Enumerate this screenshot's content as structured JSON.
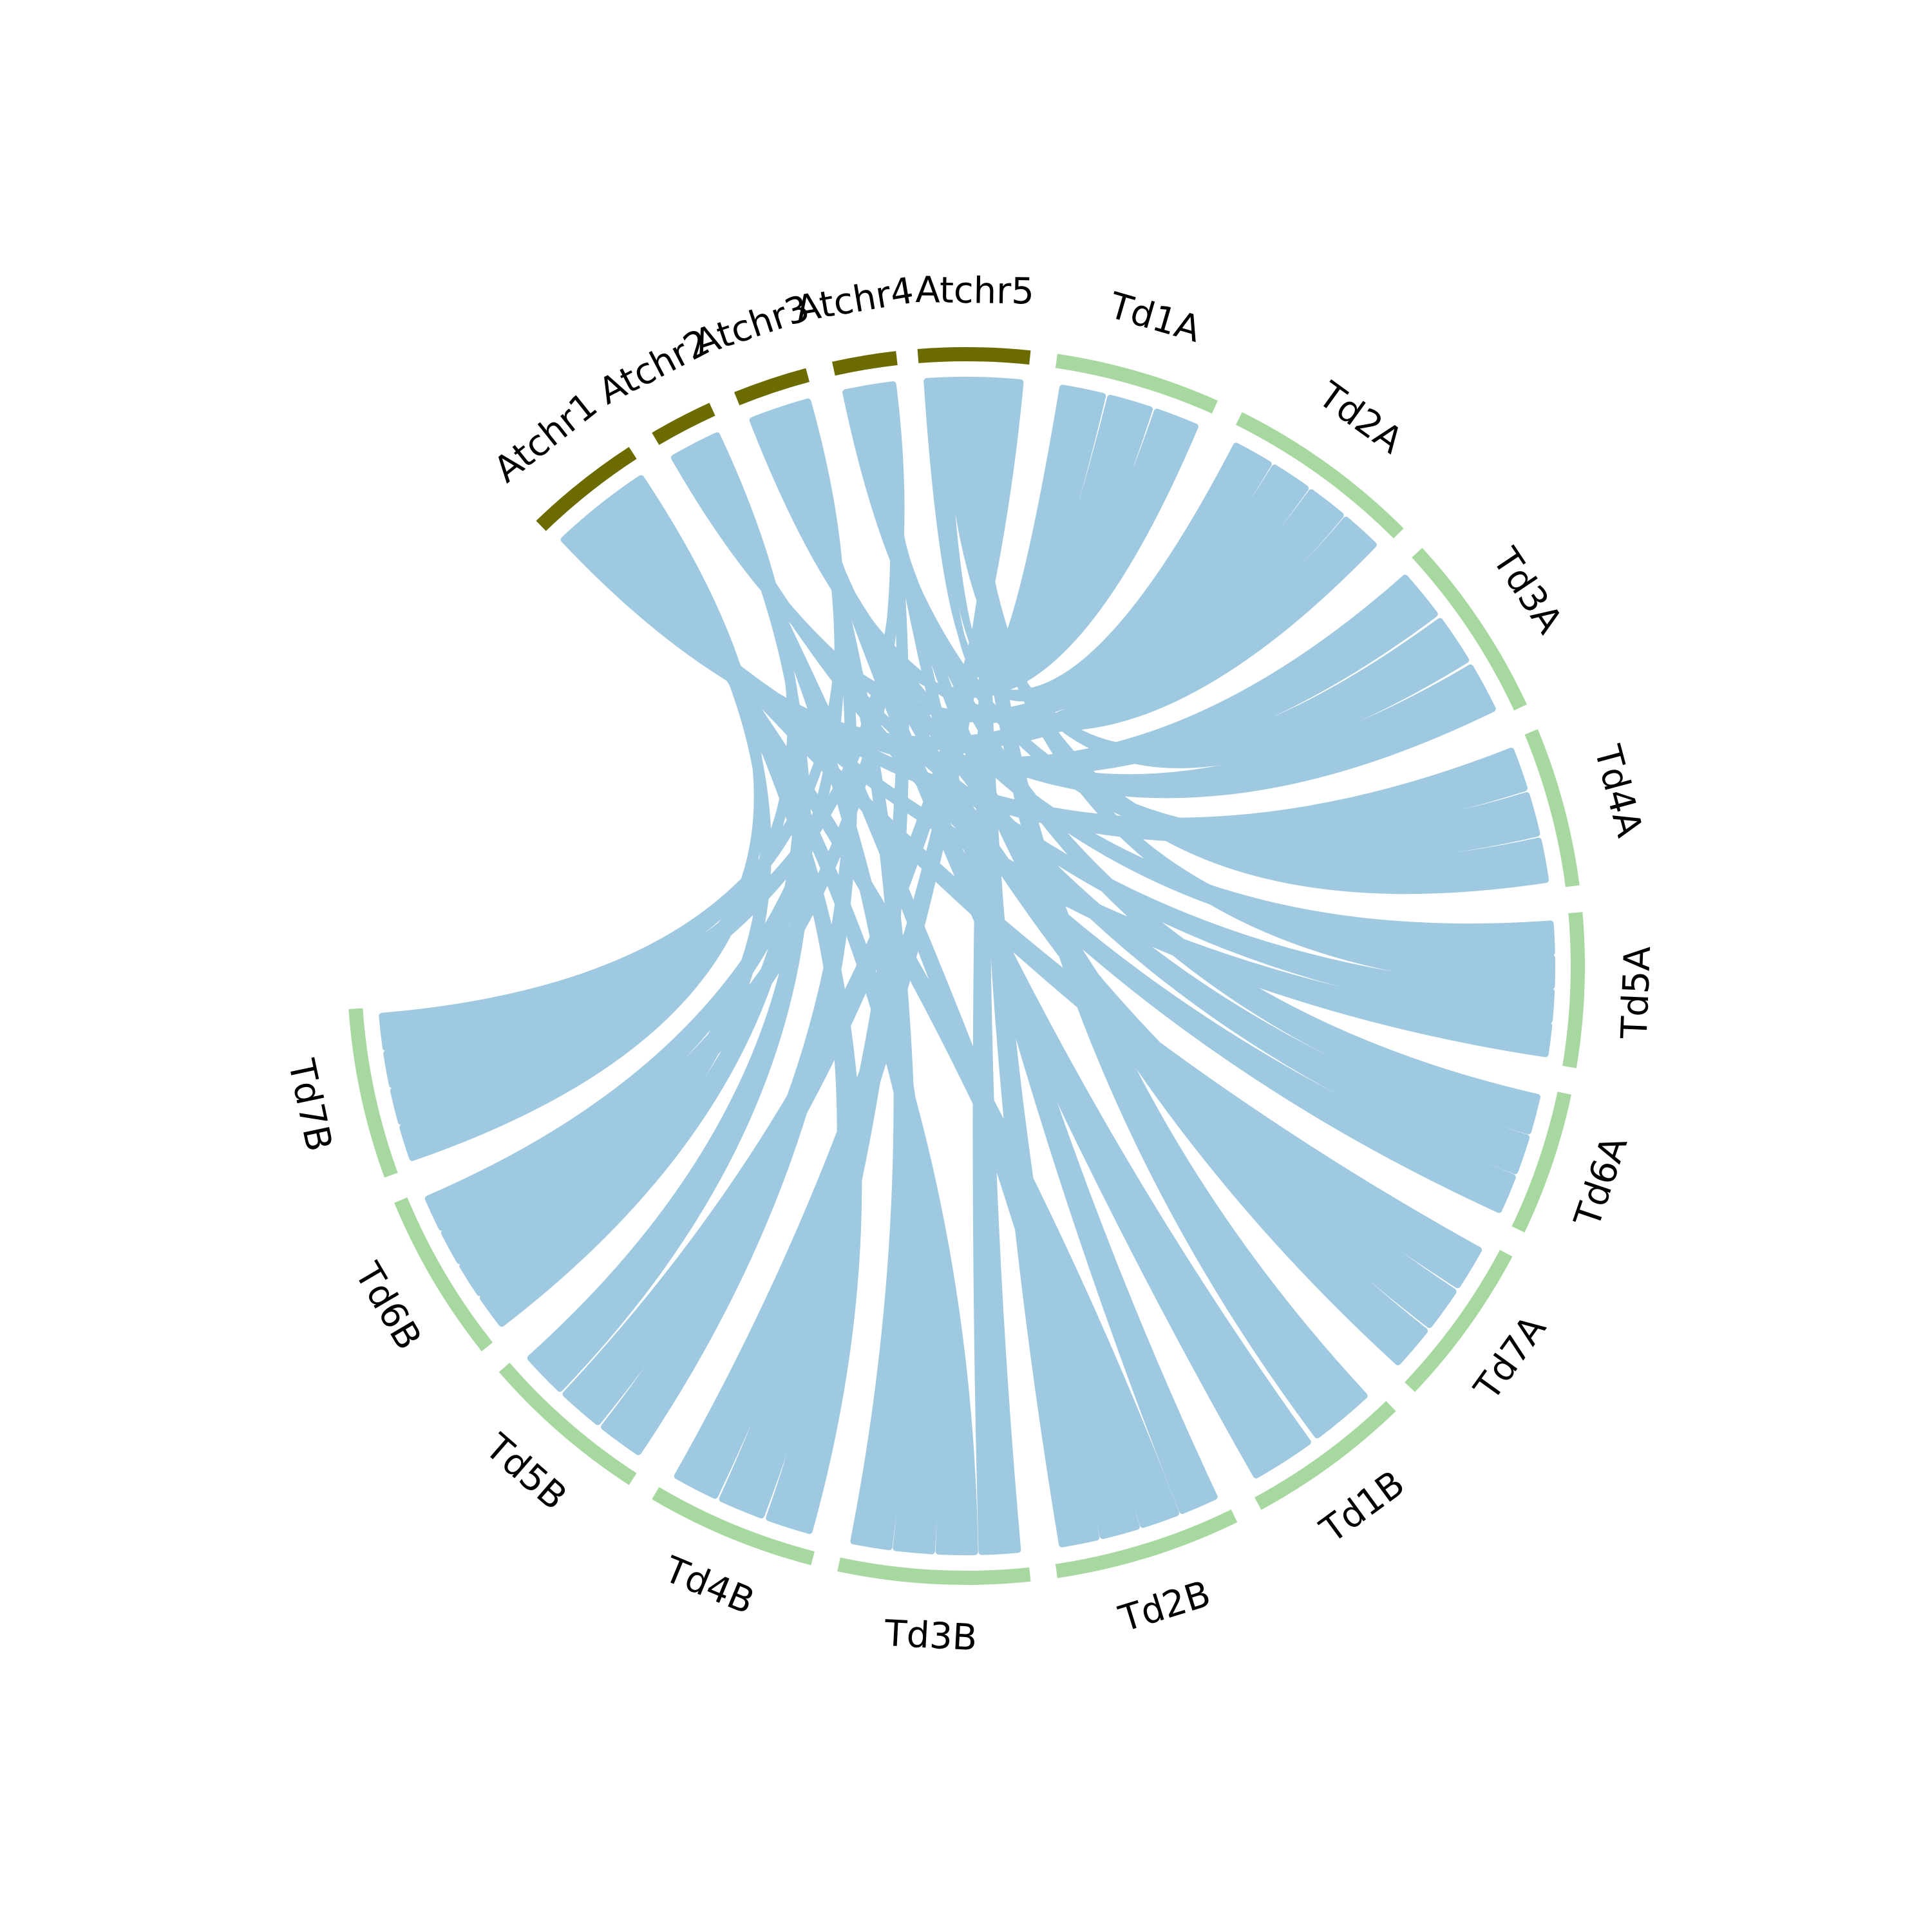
{
  "colors": {
    "arabidopsis": "#6b6b00",
    "durum": "#a6d89f",
    "link": "#9fc9e0",
    "background": "#ffffff"
  },
  "segments": [
    {
      "id": "Atchr1",
      "label": "Atchr1",
      "group": "arabidopsis"
    },
    {
      "id": "Atchr2",
      "label": "Atchr2",
      "group": "arabidopsis"
    },
    {
      "id": "Atchr3",
      "label": "Atchr3",
      "group": "arabidopsis"
    },
    {
      "id": "Atchr4",
      "label": "Atchr4",
      "group": "arabidopsis"
    },
    {
      "id": "Atchr5",
      "label": "Atchr5",
      "group": "arabidopsis"
    },
    {
      "id": "Td1A",
      "label": "Td1A",
      "group": "durum"
    },
    {
      "id": "Td2A",
      "label": "Td2A",
      "group": "durum"
    },
    {
      "id": "Td3A",
      "label": "Td3A",
      "group": "durum"
    },
    {
      "id": "Td4A",
      "label": "Td4A",
      "group": "durum"
    },
    {
      "id": "Td5A",
      "label": "Td5A",
      "group": "durum"
    },
    {
      "id": "Td6A",
      "label": "Td6A",
      "group": "durum"
    },
    {
      "id": "Td7A",
      "label": "Td7A",
      "group": "durum"
    },
    {
      "id": "Td1B",
      "label": "Td1B",
      "group": "durum"
    },
    {
      "id": "Td2B",
      "label": "Td2B",
      "group": "durum"
    },
    {
      "id": "Td3B",
      "label": "Td3B",
      "group": "durum"
    },
    {
      "id": "Td4B",
      "label": "Td4B",
      "group": "durum"
    },
    {
      "id": "Td5B",
      "label": "Td5B",
      "group": "durum"
    },
    {
      "id": "Td6B",
      "label": "Td6B",
      "group": "durum"
    },
    {
      "id": "Td7B",
      "label": "Td7B",
      "group": "durum"
    }
  ],
  "links": [
    {
      "from": "Td1A",
      "to": "Atchr5"
    },
    {
      "from": "Td1A",
      "to": "Atchr5"
    },
    {
      "from": "Td1A",
      "to": "Atchr3"
    },
    {
      "from": "Td2A",
      "to": "Atchr4"
    },
    {
      "from": "Td2A",
      "to": "Atchr2"
    },
    {
      "from": "Td2A",
      "to": "Atchr1"
    },
    {
      "from": "Td2A",
      "to": "Atchr3"
    },
    {
      "from": "Td3A",
      "to": "Atchr1"
    },
    {
      "from": "Td3A",
      "to": "Atchr5"
    },
    {
      "from": "Td3A",
      "to": "Atchr2"
    },
    {
      "from": "Td4A",
      "to": "Atchr1"
    },
    {
      "from": "Td4A",
      "to": "Atchr4"
    },
    {
      "from": "Td4A",
      "to": "Atchr5"
    },
    {
      "from": "Td5A",
      "to": "Atchr3"
    },
    {
      "from": "Td5A",
      "to": "Atchr5"
    },
    {
      "from": "Td5A",
      "to": "Atchr2"
    },
    {
      "from": "Td5A",
      "to": "Atchr1"
    },
    {
      "from": "Td6A",
      "to": "Atchr4"
    },
    {
      "from": "Td6A",
      "to": "Atchr3"
    },
    {
      "from": "Td6A",
      "to": "Atchr2"
    },
    {
      "from": "Td7A",
      "to": "Atchr1"
    },
    {
      "from": "Td7A",
      "to": "Atchr3"
    },
    {
      "from": "Td7A",
      "to": "Atchr4"
    },
    {
      "from": "Td1B",
      "to": "Atchr5"
    },
    {
      "from": "Td1B",
      "to": "Atchr3"
    },
    {
      "from": "Td2B",
      "to": "Atchr4"
    },
    {
      "from": "Td2B",
      "to": "Atchr1"
    },
    {
      "from": "Td2B",
      "to": "Atchr2"
    },
    {
      "from": "Td2B",
      "to": "Atchr5"
    },
    {
      "from": "Td3B",
      "to": "Atchr5"
    },
    {
      "from": "Td3B",
      "to": "Atchr1"
    },
    {
      "from": "Td3B",
      "to": "Atchr2"
    },
    {
      "from": "Td3B",
      "to": "Atchr3"
    },
    {
      "from": "Td4B",
      "to": "Atchr1"
    },
    {
      "from": "Td4B",
      "to": "Atchr4"
    },
    {
      "from": "Td4B",
      "to": "Atchr5"
    },
    {
      "from": "Td5B",
      "to": "Atchr3"
    },
    {
      "from": "Td5B",
      "to": "Atchr5"
    },
    {
      "from": "Td5B",
      "to": "Atchr2"
    },
    {
      "from": "Td6B",
      "to": "Atchr2"
    },
    {
      "from": "Td6B",
      "to": "Atchr1"
    },
    {
      "from": "Td6B",
      "to": "Atchr4"
    },
    {
      "from": "Td6B",
      "to": "Atchr3"
    },
    {
      "from": "Td7B",
      "to": "Atchr1"
    },
    {
      "from": "Td7B",
      "to": "Atchr2"
    },
    {
      "from": "Td7B",
      "to": "Atchr4"
    },
    {
      "from": "Td7B",
      "to": "Atchr3"
    }
  ]
}
